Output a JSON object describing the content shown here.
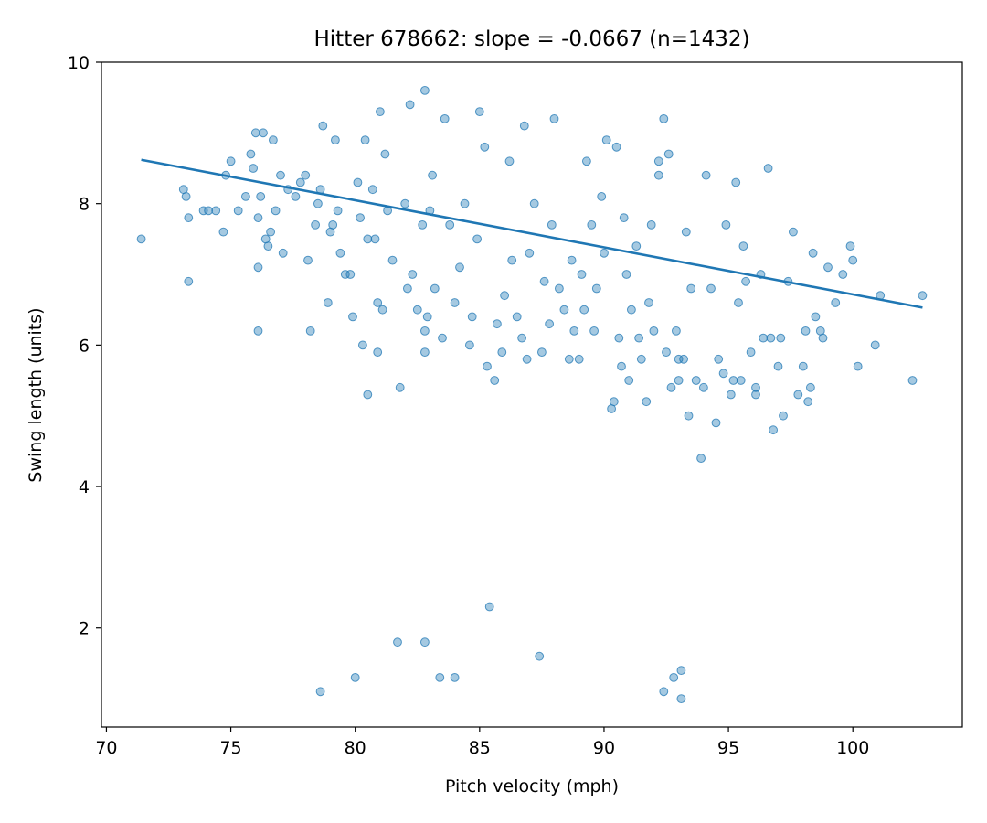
{
  "chart_data": {
    "type": "scatter",
    "title": "Hitter 678662: slope = -0.0667 (n=1432)",
    "xlabel": "Pitch velocity (mph)",
    "ylabel": "Swing length (units)",
    "xlim": [
      69.8,
      104.4
    ],
    "ylim": [
      0.6,
      10.0
    ],
    "xticks": [
      70,
      75,
      80,
      85,
      90,
      95,
      100
    ],
    "yticks": [
      2,
      4,
      6,
      8,
      10
    ],
    "grid": false,
    "legend": "none",
    "point_color": "#1f77b4",
    "point_alpha": 0.4,
    "series": [
      {
        "points": [
          [
            71.4,
            7.5
          ],
          [
            73.1,
            8.2
          ],
          [
            73.2,
            8.1
          ],
          [
            73.3,
            6.9
          ],
          [
            73.3,
            7.8
          ],
          [
            73.9,
            7.9
          ],
          [
            74.1,
            7.9
          ],
          [
            74.4,
            7.9
          ],
          [
            74.7,
            7.6
          ],
          [
            74.8,
            8.4
          ],
          [
            75.0,
            8.6
          ],
          [
            75.3,
            7.9
          ],
          [
            75.6,
            8.1
          ],
          [
            75.8,
            8.7
          ],
          [
            75.9,
            8.5
          ],
          [
            76.0,
            9.0
          ],
          [
            76.1,
            7.8
          ],
          [
            76.1,
            7.1
          ],
          [
            76.1,
            6.2
          ],
          [
            76.2,
            8.1
          ],
          [
            76.3,
            9.0
          ],
          [
            76.4,
            7.5
          ],
          [
            76.5,
            7.4
          ],
          [
            76.6,
            7.6
          ],
          [
            76.7,
            8.9
          ],
          [
            76.8,
            7.9
          ],
          [
            77.0,
            8.4
          ],
          [
            77.1,
            7.3
          ],
          [
            77.3,
            8.2
          ],
          [
            77.6,
            8.1
          ],
          [
            77.8,
            8.3
          ],
          [
            78.0,
            8.4
          ],
          [
            78.1,
            7.2
          ],
          [
            78.2,
            6.2
          ],
          [
            78.4,
            7.7
          ],
          [
            78.5,
            8.0
          ],
          [
            78.6,
            8.2
          ],
          [
            78.7,
            9.1
          ],
          [
            78.9,
            6.6
          ],
          [
            79.0,
            7.6
          ],
          [
            79.1,
            7.7
          ],
          [
            79.2,
            8.9
          ],
          [
            79.3,
            7.9
          ],
          [
            79.4,
            7.3
          ],
          [
            79.6,
            7.0
          ],
          [
            79.8,
            7.0
          ],
          [
            79.9,
            6.4
          ],
          [
            80.0,
            1.3
          ],
          [
            78.6,
            1.1
          ],
          [
            80.1,
            8.3
          ],
          [
            80.2,
            7.8
          ],
          [
            80.3,
            6.0
          ],
          [
            80.4,
            8.9
          ],
          [
            80.5,
            5.3
          ],
          [
            80.5,
            7.5
          ],
          [
            80.7,
            8.2
          ],
          [
            80.8,
            7.5
          ],
          [
            80.9,
            6.6
          ],
          [
            80.9,
            5.9
          ],
          [
            81.0,
            9.3
          ],
          [
            81.1,
            6.5
          ],
          [
            81.2,
            8.7
          ],
          [
            81.3,
            7.9
          ],
          [
            81.5,
            7.2
          ],
          [
            81.7,
            1.8
          ],
          [
            81.8,
            5.4
          ],
          [
            82.0,
            8.0
          ],
          [
            82.1,
            6.8
          ],
          [
            82.2,
            9.4
          ],
          [
            82.3,
            7.0
          ],
          [
            82.5,
            6.5
          ],
          [
            82.7,
            7.7
          ],
          [
            82.8,
            5.9
          ],
          [
            82.8,
            6.2
          ],
          [
            82.8,
            1.8
          ],
          [
            82.8,
            9.6
          ],
          [
            82.9,
            6.4
          ],
          [
            83.0,
            7.9
          ],
          [
            83.1,
            8.4
          ],
          [
            83.2,
            6.8
          ],
          [
            83.4,
            1.3
          ],
          [
            83.5,
            6.1
          ],
          [
            83.6,
            9.2
          ],
          [
            83.8,
            7.7
          ],
          [
            84.0,
            1.3
          ],
          [
            84.0,
            6.6
          ],
          [
            84.2,
            7.1
          ],
          [
            84.4,
            8.0
          ],
          [
            84.6,
            6.0
          ],
          [
            84.7,
            6.4
          ],
          [
            84.9,
            7.5
          ],
          [
            85.0,
            9.3
          ],
          [
            85.2,
            8.8
          ],
          [
            85.3,
            5.7
          ],
          [
            85.4,
            2.3
          ],
          [
            85.6,
            5.5
          ],
          [
            85.7,
            6.3
          ],
          [
            85.9,
            5.9
          ],
          [
            86.0,
            6.7
          ],
          [
            86.2,
            8.6
          ],
          [
            86.3,
            7.2
          ],
          [
            86.5,
            6.4
          ],
          [
            86.7,
            6.1
          ],
          [
            86.8,
            9.1
          ],
          [
            86.9,
            5.8
          ],
          [
            87.0,
            7.3
          ],
          [
            87.2,
            8.0
          ],
          [
            87.4,
            1.6
          ],
          [
            87.5,
            5.9
          ],
          [
            87.6,
            6.9
          ],
          [
            87.8,
            6.3
          ],
          [
            87.9,
            7.7
          ],
          [
            88.0,
            9.2
          ],
          [
            88.2,
            6.8
          ],
          [
            88.4,
            6.5
          ],
          [
            88.6,
            5.8
          ],
          [
            88.7,
            7.2
          ],
          [
            88.8,
            6.2
          ],
          [
            89.0,
            5.8
          ],
          [
            89.1,
            7.0
          ],
          [
            89.2,
            6.5
          ],
          [
            89.3,
            8.6
          ],
          [
            89.5,
            7.7
          ],
          [
            89.6,
            6.2
          ],
          [
            89.7,
            6.8
          ],
          [
            89.9,
            8.1
          ],
          [
            90.0,
            7.3
          ],
          [
            90.1,
            8.9
          ],
          [
            90.3,
            5.1
          ],
          [
            90.4,
            5.2
          ],
          [
            90.5,
            8.8
          ],
          [
            90.6,
            6.1
          ],
          [
            90.7,
            5.7
          ],
          [
            90.8,
            7.8
          ],
          [
            90.9,
            7.0
          ],
          [
            91.0,
            5.5
          ],
          [
            91.1,
            6.5
          ],
          [
            91.3,
            7.4
          ],
          [
            91.4,
            6.1
          ],
          [
            91.5,
            5.8
          ],
          [
            91.7,
            5.2
          ],
          [
            91.8,
            6.6
          ],
          [
            91.9,
            7.7
          ],
          [
            92.0,
            6.2
          ],
          [
            92.2,
            8.6
          ],
          [
            92.2,
            8.4
          ],
          [
            92.4,
            9.2
          ],
          [
            92.4,
            1.1
          ],
          [
            92.5,
            5.9
          ],
          [
            92.6,
            8.7
          ],
          [
            92.7,
            5.4
          ],
          [
            92.8,
            1.3
          ],
          [
            92.9,
            6.2
          ],
          [
            93.0,
            5.8
          ],
          [
            93.0,
            5.5
          ],
          [
            93.1,
            1.4
          ],
          [
            93.1,
            1.0
          ],
          [
            93.2,
            5.8
          ],
          [
            93.3,
            7.6
          ],
          [
            93.4,
            5.0
          ],
          [
            93.5,
            6.8
          ],
          [
            93.7,
            5.5
          ],
          [
            93.9,
            4.4
          ],
          [
            94.0,
            5.4
          ],
          [
            94.1,
            8.4
          ],
          [
            94.3,
            6.8
          ],
          [
            94.5,
            4.9
          ],
          [
            94.6,
            5.8
          ],
          [
            94.8,
            5.6
          ],
          [
            94.9,
            7.7
          ],
          [
            95.1,
            5.3
          ],
          [
            95.2,
            5.5
          ],
          [
            95.3,
            8.3
          ],
          [
            95.4,
            6.6
          ],
          [
            95.5,
            5.5
          ],
          [
            95.6,
            7.4
          ],
          [
            95.7,
            6.9
          ],
          [
            95.9,
            5.9
          ],
          [
            96.1,
            5.4
          ],
          [
            96.1,
            5.3
          ],
          [
            96.3,
            7.0
          ],
          [
            96.4,
            6.1
          ],
          [
            96.6,
            8.5
          ],
          [
            96.7,
            6.1
          ],
          [
            96.8,
            4.8
          ],
          [
            97.0,
            5.7
          ],
          [
            97.1,
            6.1
          ],
          [
            97.2,
            5.0
          ],
          [
            97.4,
            6.9
          ],
          [
            97.6,
            7.6
          ],
          [
            97.8,
            5.3
          ],
          [
            98.0,
            5.7
          ],
          [
            98.1,
            6.2
          ],
          [
            98.2,
            5.2
          ],
          [
            98.3,
            5.4
          ],
          [
            98.4,
            7.3
          ],
          [
            98.5,
            6.4
          ],
          [
            98.7,
            6.2
          ],
          [
            98.8,
            6.1
          ],
          [
            99.0,
            7.1
          ],
          [
            99.3,
            6.6
          ],
          [
            99.6,
            7.0
          ],
          [
            99.9,
            7.4
          ],
          [
            100.0,
            7.2
          ],
          [
            100.2,
            5.7
          ],
          [
            100.9,
            6.0
          ],
          [
            101.1,
            6.7
          ],
          [
            102.4,
            5.5
          ],
          [
            102.8,
            6.7
          ]
        ]
      }
    ],
    "fit_line": {
      "x": [
        71.4,
        102.8
      ],
      "y": [
        8.62,
        6.53
      ],
      "color": "#1f77b4"
    }
  }
}
